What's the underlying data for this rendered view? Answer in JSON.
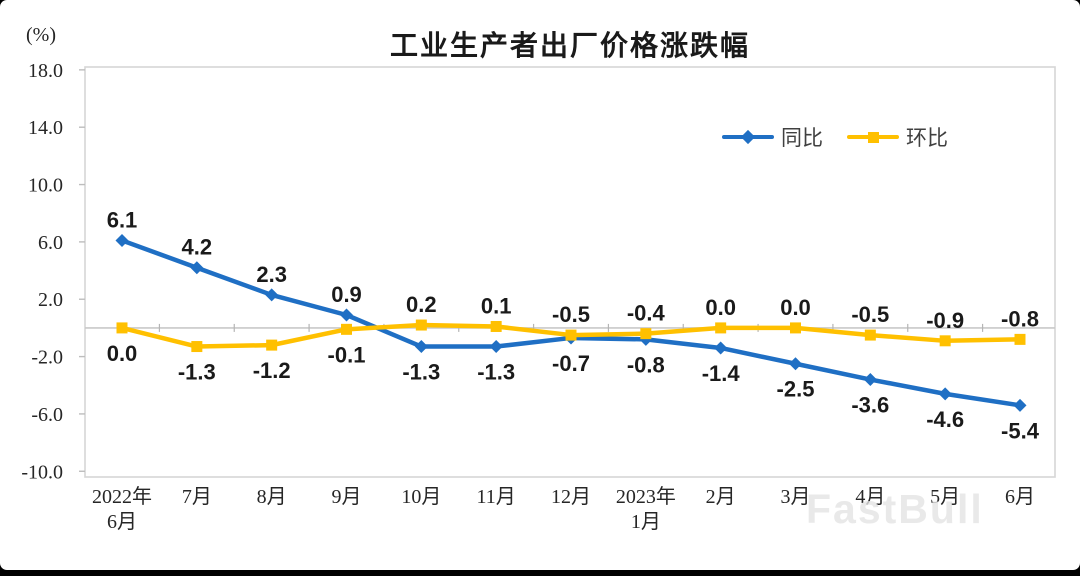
{
  "page": {
    "unit_label": "(%)",
    "watermark": "FastBull"
  },
  "chart_data": {
    "type": "line",
    "title": "工业生产者出厂价格涨跌幅",
    "ylabel": "(%)",
    "categories": [
      [
        "2022年",
        "6月"
      ],
      [
        "7月"
      ],
      [
        "8月"
      ],
      [
        "9月"
      ],
      [
        "10月"
      ],
      [
        "11月"
      ],
      [
        "12月"
      ],
      [
        "2023年",
        "1月"
      ],
      [
        "2月"
      ],
      [
        "3月"
      ],
      [
        "4月"
      ],
      [
        "5月"
      ],
      [
        "6月"
      ]
    ],
    "series": [
      {
        "name": "同比",
        "color": "#1F6FC4",
        "marker": "diamond",
        "values": [
          6.1,
          4.2,
          2.3,
          0.9,
          -1.3,
          -1.3,
          -0.7,
          -0.8,
          -1.4,
          -2.5,
          -3.6,
          -4.6,
          -5.4
        ],
        "label_side": [
          "above",
          "above",
          "above",
          "above",
          "below",
          "below",
          "below",
          "below",
          "below",
          "below",
          "below",
          "below",
          "below"
        ]
      },
      {
        "name": "环比",
        "color": "#FFC000",
        "marker": "square",
        "values": [
          0.0,
          -1.3,
          -1.2,
          -0.1,
          0.2,
          0.1,
          -0.5,
          -0.4,
          0.0,
          0.0,
          -0.5,
          -0.9,
          -0.8
        ],
        "label_side": [
          "below",
          "below",
          "below",
          "below",
          "above",
          "above",
          "above",
          "above",
          "above",
          "above",
          "above",
          "above",
          "above"
        ]
      }
    ],
    "y_ticks": [
      18.0,
      14.0,
      10.0,
      6.0,
      2.0,
      -2.0,
      -6.0,
      -10.0
    ],
    "ylim": [
      -10.4,
      18.2
    ],
    "grid": false,
    "legend_position": "top-right-inside"
  }
}
